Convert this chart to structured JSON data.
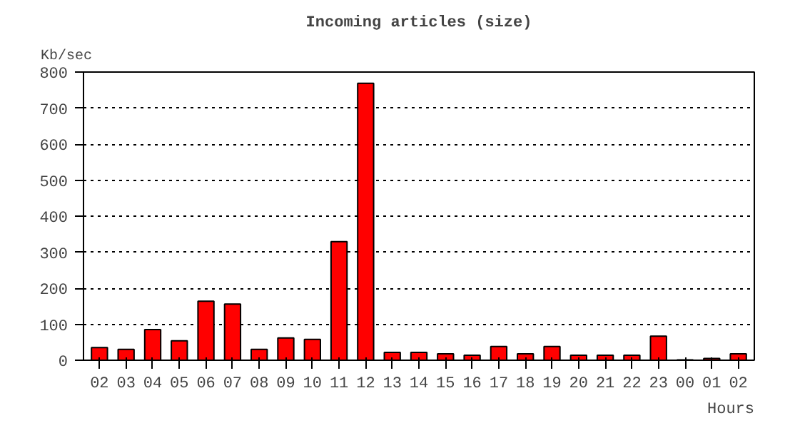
{
  "chart_data": {
    "type": "bar",
    "title": "Incoming articles (size)",
    "ylabel": "Kb/sec",
    "xlabel": "Hours",
    "categories": [
      "02",
      "03",
      "04",
      "05",
      "06",
      "07",
      "08",
      "09",
      "10",
      "11",
      "12",
      "13",
      "14",
      "15",
      "16",
      "17",
      "18",
      "19",
      "20",
      "21",
      "22",
      "23",
      "00",
      "01",
      "02"
    ],
    "values": [
      35,
      30,
      85,
      54,
      164,
      156,
      30,
      62,
      58,
      329,
      769,
      22,
      22,
      18,
      14,
      38,
      18,
      38,
      14,
      14,
      14,
      67,
      1,
      5,
      18
    ],
    "color": "#ff0000",
    "ylim": [
      0,
      800
    ],
    "yticks": [
      0,
      100,
      200,
      300,
      400,
      500,
      600,
      700,
      800
    ],
    "grid": "y"
  }
}
